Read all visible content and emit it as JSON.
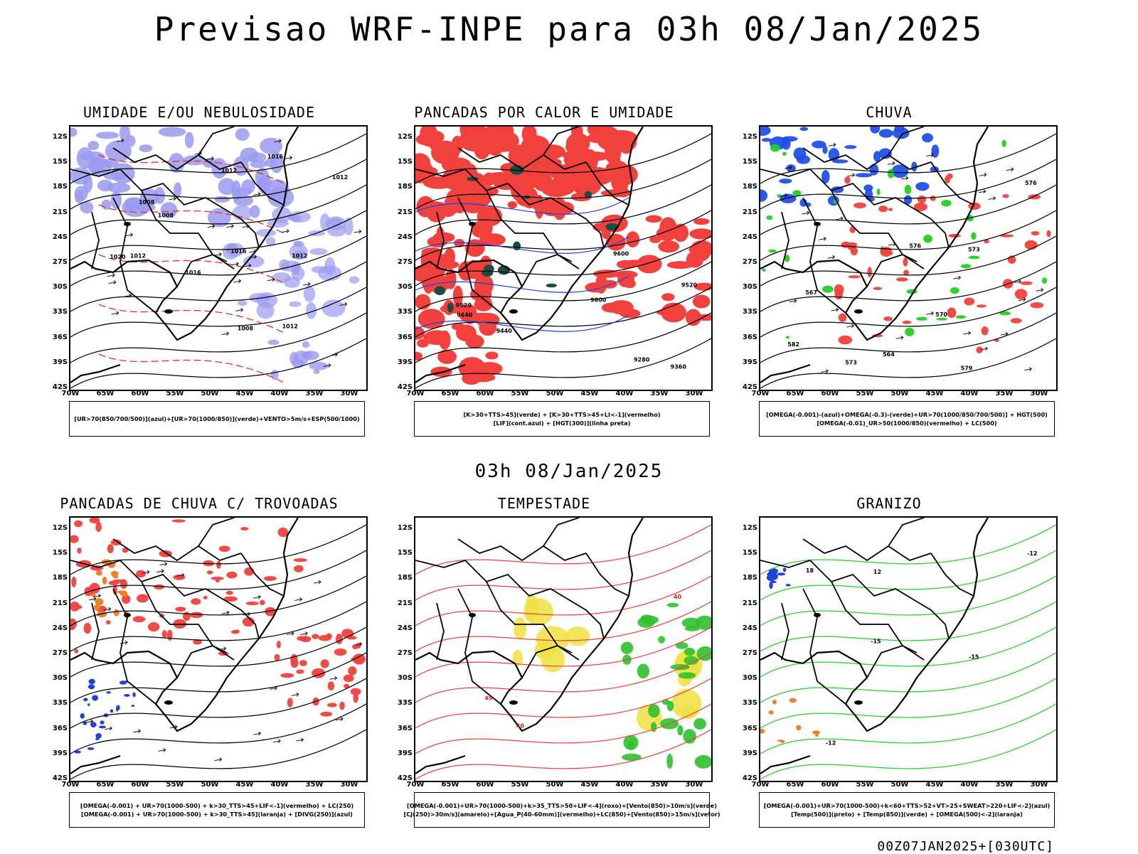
{
  "title": "Previsao WRF-INPE  para 03h 08/Jan/2025",
  "subtitle": "03h 08/Jan/2025",
  "footer": "00Z07JAN2025+[030UTC]",
  "chart_data": [
    {
      "type": "heatmap",
      "title": "UMIDADE E/OU NEBULOSIDADE",
      "ylabels": [
        "12S",
        "15S",
        "18S",
        "21S",
        "24S",
        "27S",
        "30S",
        "33S",
        "36S",
        "39S",
        "42S"
      ],
      "xlabels": [
        "70W",
        "65W",
        "60W",
        "55W",
        "50W",
        "45W",
        "40W",
        "35W",
        "30W"
      ],
      "legend": [
        "[UR>70(850/700/500)](azul)+[UR>70(1000/850)](verde)+VENTO>5m/s+ESP(500/1000)"
      ],
      "contour_labels": [
        "1012",
        "1008",
        "1016",
        "1020",
        "1012",
        "1008",
        "1012",
        "1016",
        "1012",
        "1008",
        "1016",
        "1012"
      ],
      "colors": {
        "fill1": "#9a9af0",
        "fill2": "#2ec12e",
        "line": "#e03030"
      }
    },
    {
      "type": "heatmap",
      "title": "PANCADAS POR CALOR E UMIDADE",
      "ylabels": [
        "12S",
        "15S",
        "18S",
        "21S",
        "24S",
        "27S",
        "30S",
        "33S",
        "36S",
        "39S",
        "42S"
      ],
      "xlabels": [
        "70W",
        "65W",
        "60W",
        "55W",
        "50W",
        "45W",
        "40W",
        "35W",
        "30W"
      ],
      "legend": [
        "[K>30+TTS>45](verde) + [K>30+TTS>45+LI<-1](vermelho)",
        "[LIF](cont.azul) + [HGT(300)](linha preta)"
      ],
      "contour_labels": [
        "9600",
        "9520",
        "9440",
        "9360",
        "9280",
        "9600",
        "9520",
        "9440"
      ],
      "colors": {
        "fill1": "#f2403c",
        "fill2": "#1e4a44",
        "line": "#2040e0"
      }
    },
    {
      "type": "heatmap",
      "title": "CHUVA",
      "ylabels": [
        "12S",
        "15S",
        "18S",
        "21S",
        "24S",
        "27S",
        "30S",
        "33S",
        "36S",
        "39S",
        "42S"
      ],
      "xlabels": [
        "70W",
        "65W",
        "60W",
        "55W",
        "50W",
        "45W",
        "40W",
        "35W",
        "30W"
      ],
      "legend": [
        "[OMEGA(-0.001)-(azul)+OMEGA(-0.3)-(verde)+UR>70(1000/850/700/500)] + HGT(500)",
        "[OMEGA(-0.01)_UR>50(1000/850)(vermelho) + LC(500)"
      ],
      "contour_labels": [
        "582",
        "579",
        "576",
        "573",
        "570",
        "567",
        "564",
        "576",
        "573"
      ],
      "colors": {
        "fill1": "#2050e8",
        "fill2": "#22d022",
        "fill3": "#f2403c"
      }
    },
    {
      "type": "heatmap",
      "title": "PANCADAS DE CHUVA C/ TROVOADAS",
      "ylabels": [
        "12S",
        "15S",
        "18S",
        "21S",
        "24S",
        "27S",
        "30S",
        "33S",
        "36S",
        "39S",
        "42S"
      ],
      "xlabels": [
        "70W",
        "65W",
        "60W",
        "55W",
        "50W",
        "45W",
        "40W",
        "35W",
        "30W"
      ],
      "legend": [
        "[OMEGA(-0.001) + UR>70(1000-500) + k>30_TTS>45+LIF<-1](vermelho) + LC(250)",
        "[OMEGA(-0.001) + UR>70(1000-500) + k>30_TTS>45](laranja) + [DIVG(250)](azul)"
      ],
      "contour_labels": [],
      "colors": {
        "fill1": "#f2403c",
        "fill2": "#f08020",
        "fill3": "#2040e0"
      }
    },
    {
      "type": "heatmap",
      "title": "TEMPESTADE",
      "ylabels": [
        "12S",
        "15S",
        "18S",
        "21S",
        "24S",
        "27S",
        "30S",
        "33S",
        "36S",
        "39S",
        "42S"
      ],
      "xlabels": [
        "70W",
        "65W",
        "60W",
        "55W",
        "50W",
        "45W",
        "40W",
        "35W",
        "30W"
      ],
      "legend": [
        "[OMEGA(-0.001)+UR>70(1000-500)+k>35_TTS>50+LIF<-4](roxo)+[Vento(850)>10m/s](verde)",
        "[CJ(250)>30m/s](amarelo)+[Agua_P(40-60mm)](vermelho)+LC(850)+[Vento(850)>15m/s](vetor)"
      ],
      "contour_labels": [
        "40",
        "45",
        "40"
      ],
      "colors": {
        "fill1": "#f0e040",
        "fill2": "#2ec12e",
        "line": "#f04040"
      }
    },
    {
      "type": "heatmap",
      "title": "GRANIZO",
      "ylabels": [
        "12S",
        "15S",
        "18S",
        "21S",
        "24S",
        "27S",
        "30S",
        "33S",
        "36S",
        "39S",
        "42S"
      ],
      "xlabels": [
        "70W",
        "65W",
        "60W",
        "55W",
        "50W",
        "45W",
        "40W",
        "35W",
        "30W"
      ],
      "legend": [
        "[OMEGA(-0.001)+UR>70(1000-500)+k<60+TTS>52+VT>25+SWEAT>220+LIF<-2](azul)",
        "[Temp(500)](preto) + [Temp(850)](verde) + [OMEGA(500)<-2](laranja)"
      ],
      "contour_labels": [
        "-15",
        "-12",
        "-15",
        "-12",
        "18",
        "12"
      ],
      "colors": {
        "line1": "#22d022",
        "fill2": "#f08020",
        "fill3": "#2040e0"
      }
    }
  ]
}
